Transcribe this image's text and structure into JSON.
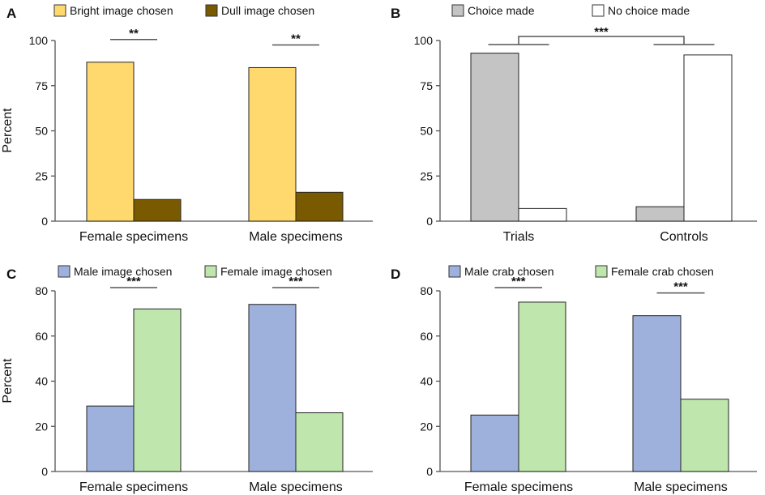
{
  "chart_data": [
    {
      "panel": "A",
      "type": "bar",
      "ylabel": "Percent",
      "ylim": [
        0,
        100
      ],
      "yticks": [
        0,
        25,
        50,
        75,
        100
      ],
      "categories": [
        "Female specimens",
        "Male specimens"
      ],
      "series": [
        {
          "name": "Bright image chosen",
          "color": "#FFD86E",
          "values": [
            88,
            85
          ]
        },
        {
          "name": "Dull image chosen",
          "color": "#7A5A00",
          "values": [
            12,
            16
          ]
        }
      ],
      "significance": [
        {
          "label": "**",
          "type": "pair",
          "category": 0
        },
        {
          "label": "**",
          "type": "pair",
          "category": 1
        }
      ]
    },
    {
      "panel": "B",
      "type": "bar",
      "ylabel": "",
      "ylim": [
        0,
        100
      ],
      "yticks": [
        0,
        25,
        50,
        75,
        100
      ],
      "categories": [
        "Trials",
        "Controls"
      ],
      "series": [
        {
          "name": "Choice made",
          "color": "#C4C4C4",
          "values": [
            93,
            8
          ]
        },
        {
          "name": "No choice made",
          "color": "#FFFFFF",
          "values": [
            7,
            92
          ]
        }
      ],
      "significance": [
        {
          "label": "***",
          "type": "between-categories"
        }
      ]
    },
    {
      "panel": "C",
      "type": "bar",
      "ylabel": "Percent",
      "ylim": [
        0,
        80
      ],
      "yticks": [
        0,
        20,
        40,
        60,
        80
      ],
      "categories": [
        "Female specimens",
        "Male specimens"
      ],
      "series": [
        {
          "name": "Male image chosen",
          "color": "#9EB1DC",
          "values": [
            29,
            74
          ]
        },
        {
          "name": "Female image chosen",
          "color": "#BFE6AC",
          "values": [
            72,
            26
          ]
        }
      ],
      "significance": [
        {
          "label": "***",
          "type": "pair",
          "category": 0
        },
        {
          "label": "***",
          "type": "pair",
          "category": 1
        }
      ]
    },
    {
      "panel": "D",
      "type": "bar",
      "ylabel": "",
      "ylim": [
        0,
        80
      ],
      "yticks": [
        0,
        20,
        40,
        60,
        80
      ],
      "categories": [
        "Female specimens",
        "Male specimens"
      ],
      "series": [
        {
          "name": "Male crab chosen",
          "color": "#9EB1DC",
          "values": [
            25,
            69
          ]
        },
        {
          "name": "Female crab chosen",
          "color": "#BFE6AC",
          "values": [
            75,
            32
          ]
        }
      ],
      "significance": [
        {
          "label": "***",
          "type": "pair",
          "category": 0
        },
        {
          "label": "***",
          "type": "pair",
          "category": 1
        }
      ]
    }
  ]
}
